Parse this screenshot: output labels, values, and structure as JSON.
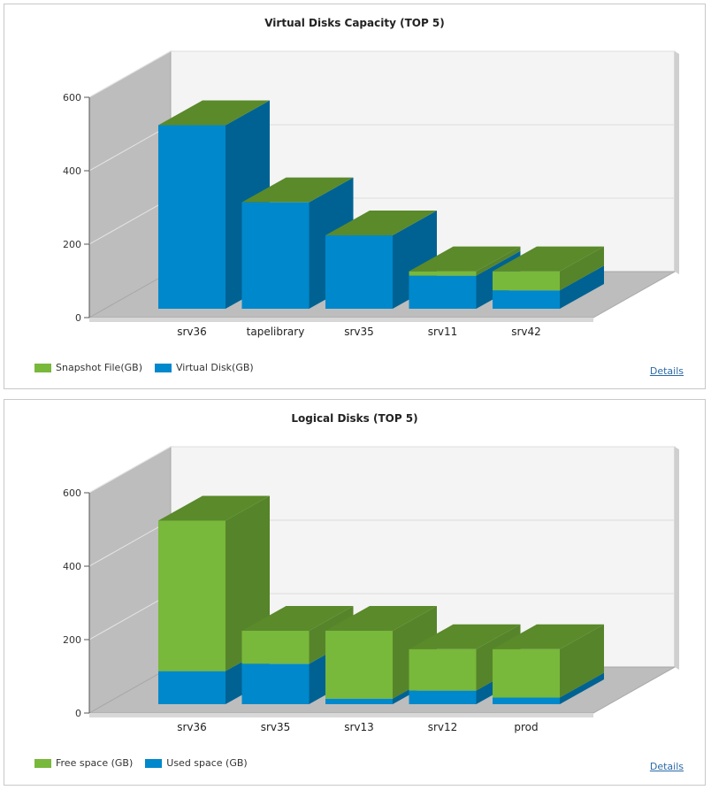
{
  "chart_data": [
    {
      "type": "bar",
      "stacked": true,
      "three_d": true,
      "title": "Virtual Disks Capacity (TOP 5)",
      "categories": [
        "srv36",
        "tapelibrary",
        "srv35",
        "srv11",
        "srv42"
      ],
      "series": [
        {
          "name": "Virtual Disk(GB)",
          "color": "#0088cc",
          "values": [
            500,
            290,
            200,
            90,
            50
          ]
        },
        {
          "name": "Snapshot File(GB)",
          "color": "#78b83b",
          "values": [
            0,
            0,
            0,
            12,
            52
          ]
        }
      ],
      "ylim": [
        0,
        600
      ],
      "yticks": [
        0,
        200,
        400,
        600
      ],
      "legend_position": "bottom-left",
      "details_label": "Details"
    },
    {
      "type": "bar",
      "stacked": true,
      "three_d": true,
      "title": "Logical Disks (TOP 5)",
      "categories": [
        "srv36",
        "srv35",
        "srv13",
        "srv12",
        "prod"
      ],
      "series": [
        {
          "name": "Used space (GB)",
          "color": "#0088cc",
          "values": [
            90,
            110,
            15,
            37,
            18
          ]
        },
        {
          "name": "Free space (GB)",
          "color": "#78b83b",
          "values": [
            410,
            90,
            185,
            113,
            132
          ]
        }
      ],
      "ylim": [
        0,
        600
      ],
      "yticks": [
        0,
        200,
        400,
        600
      ],
      "legend_position": "bottom-left",
      "details_label": "Details"
    }
  ]
}
